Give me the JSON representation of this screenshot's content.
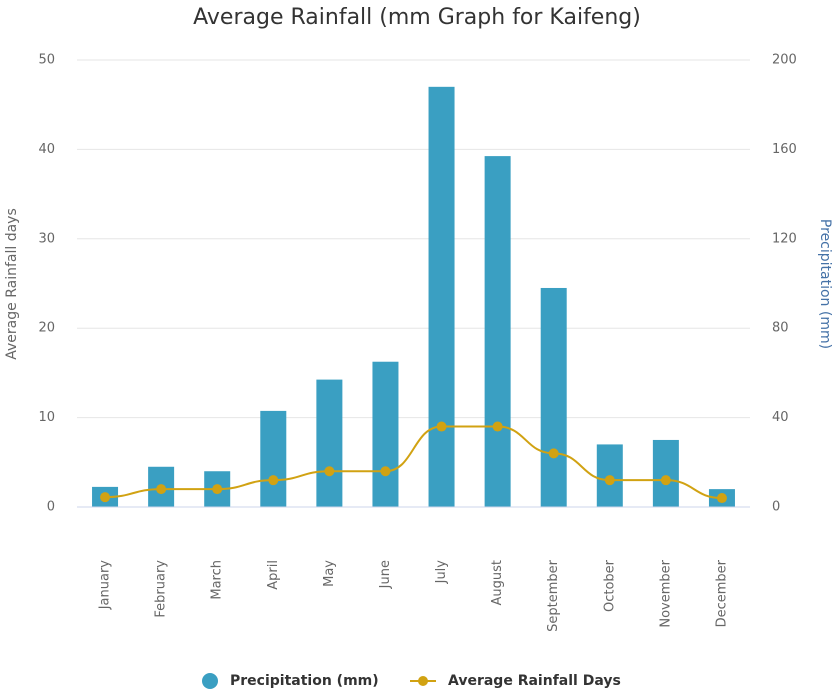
{
  "chart_data": {
    "type": "bar",
    "title": "Average Rainfall (mm Graph for Kaifeng)",
    "categories": [
      "January",
      "February",
      "March",
      "April",
      "May",
      "June",
      "July",
      "August",
      "September",
      "October",
      "November",
      "December"
    ],
    "series": [
      {
        "name": "Precipitation (mm)",
        "type": "bar",
        "axis": "y2",
        "color": "#3a9fc2",
        "values": [
          9,
          18,
          16,
          43,
          57,
          65,
          188,
          157,
          98,
          28,
          30,
          8
        ]
      },
      {
        "name": "Average Rainfall Days",
        "type": "line",
        "axis": "y",
        "color": "#d1a212",
        "values": [
          1.1,
          2,
          2,
          3,
          4,
          4,
          9,
          9,
          6,
          3,
          3,
          1
        ]
      }
    ],
    "ylabel": "Average Rainfall days",
    "y2label": "Precipitation (mm)",
    "ylim": [
      0,
      50
    ],
    "yticks": [
      0,
      10,
      20,
      30,
      40,
      50
    ],
    "y2lim": [
      0,
      200
    ],
    "y2ticks": [
      0,
      40,
      80,
      120,
      160,
      200
    ],
    "grid": true,
    "legend": "bottom"
  }
}
